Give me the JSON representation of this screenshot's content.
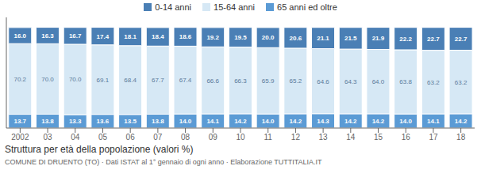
{
  "chart_data": {
    "type": "bar",
    "title": "Struttura per età della popolazione (valori %)",
    "subtitle": "COMUNE DI DRUENTO (TO) · Dati ISTAT al 1° gennaio di ogni anno · Elaborazione TUTTITALIA.IT",
    "categories": [
      "2002",
      "03",
      "04",
      "05",
      "06",
      "07",
      "08",
      "09",
      "10",
      "11",
      "12",
      "13",
      "14",
      "15",
      "16",
      "17",
      "18"
    ],
    "series": [
      {
        "name": "0-14 anni",
        "color": "#4a7fb5",
        "values": [
          16.0,
          16.3,
          16.7,
          17.4,
          18.1,
          18.4,
          18.6,
          19.2,
          19.5,
          20.0,
          20.6,
          21.1,
          21.5,
          21.9,
          22.2,
          22.7,
          22.7
        ],
        "value_labels": [
          "16.0",
          "16.3",
          "16.7",
          "17.4",
          "18.1",
          "18.4",
          "18.6",
          "19.2",
          "19.5",
          "20.0",
          "20.6",
          "21.1",
          "21.5",
          "21.9",
          "22.2",
          "22.7",
          "22.7"
        ]
      },
      {
        "name": "15-64 anni",
        "color": "#d6e8f5",
        "values": [
          70.2,
          70.0,
          70.0,
          69.1,
          68.4,
          67.7,
          67.4,
          66.6,
          66.3,
          65.9,
          65.2,
          64.6,
          64.3,
          64.0,
          63.8,
          63.2,
          63.2
        ],
        "value_labels": [
          "70.2",
          "70.0",
          "70.0",
          "69.1",
          "68.4",
          "67.7",
          "67.4",
          "66.6",
          "66.3",
          "65.9",
          "65.2",
          "64.6",
          "64.3",
          "64.0",
          "63.8",
          "63.2",
          "63.2"
        ]
      },
      {
        "name": "65 anni ed oltre",
        "color": "#5b9bd5",
        "values": [
          13.7,
          13.8,
          13.3,
          13.6,
          13.5,
          13.8,
          14.0,
          14.1,
          14.2,
          14.0,
          14.2,
          14.3,
          14.2,
          14.2,
          14.0,
          14.1,
          14.2
        ],
        "value_labels": [
          "13.7",
          "13.8",
          "13.3",
          "13.6",
          "13.5",
          "13.8",
          "14.0",
          "14.1",
          "14.2",
          "14.0",
          "14.2",
          "14.3",
          "14.2",
          "14.2",
          "14.0",
          "14.1",
          "14.2"
        ]
      }
    ],
    "ylim": [
      0,
      110
    ],
    "stacked": true,
    "data_labels": true,
    "tick_labels": "x",
    "grid": false,
    "legend": "top"
  }
}
